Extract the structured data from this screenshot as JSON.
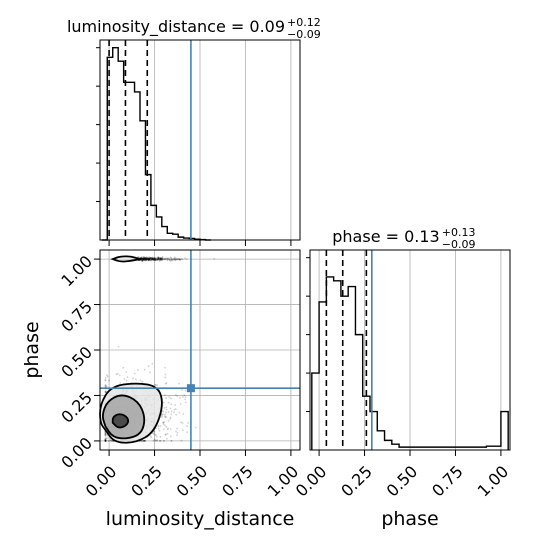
{
  "chart_data": {
    "type": "corner",
    "colors": {
      "truth": "#4682b4",
      "hist": "#000000",
      "grid": "#b0b0b0",
      "scatter": "#000000"
    },
    "truth": {
      "luminosity_distance": 0.45,
      "phase": 0.29
    },
    "axis_labels": {
      "x_left": "luminosity_distance",
      "x_right": "phase",
      "y_left": "phase"
    },
    "ticks": {
      "luminosity_distance": [
        0.0,
        0.25,
        0.5,
        0.75,
        1.0
      ],
      "phase": [
        0.0,
        0.25,
        0.5,
        0.75,
        1.0
      ]
    },
    "tick_labels": {
      "luminosity_distance": [
        "0.00",
        "0.25",
        "0.50",
        "0.75",
        "1.00"
      ],
      "phase": [
        "0.00",
        "0.25",
        "0.50",
        "0.75",
        "1.00"
      ]
    },
    "xlim": {
      "luminosity_distance": [
        -0.05,
        1.05
      ],
      "phase": [
        -0.05,
        1.05
      ]
    },
    "ylim": {
      "phase": [
        -0.05,
        1.05
      ]
    },
    "histograms": [
      {
        "param": "luminosity_distance",
        "title_main": "luminosity_distance = 0.09",
        "title_sup": "+0.12",
        "title_sub": "−0.09",
        "quantiles": [
          0.0,
          0.09,
          0.21
        ],
        "bin_edges": [
          -0.04,
          -0.01,
          0.02,
          0.05,
          0.08,
          0.11,
          0.14,
          0.17,
          0.2,
          0.23,
          0.26,
          0.29,
          0.32,
          0.35,
          0.38,
          0.41,
          0.44,
          0.47,
          0.5,
          0.53,
          0.56
        ],
        "counts": [
          0.0,
          0.95,
          1.0,
          0.93,
          0.82,
          0.82,
          0.77,
          0.62,
          0.34,
          0.18,
          0.12,
          0.07,
          0.035,
          0.03,
          0.015,
          0.01,
          0.008,
          0.004,
          0.002,
          0.0
        ]
      },
      {
        "param": "phase",
        "title_main": "phase = 0.13",
        "title_sup": "+0.13",
        "title_sub": "−0.09",
        "quantiles": [
          0.04,
          0.13,
          0.26
        ],
        "bin_edges": [
          -0.04,
          0.0,
          0.04,
          0.08,
          0.12,
          0.16,
          0.2,
          0.24,
          0.28,
          0.32,
          0.36,
          0.4,
          0.44,
          0.48,
          0.52,
          0.56,
          0.6,
          0.64,
          0.68,
          0.72,
          0.76,
          0.8,
          0.84,
          0.88,
          0.92,
          0.96,
          1.0,
          1.04
        ],
        "counts": [
          0.4,
          0.77,
          0.9,
          0.88,
          0.8,
          0.85,
          0.6,
          0.28,
          0.2,
          0.1,
          0.05,
          0.03,
          0.015,
          0.015,
          0.015,
          0.015,
          0.015,
          0.015,
          0.015,
          0.015,
          0.015,
          0.015,
          0.015,
          0.015,
          0.02,
          0.02,
          0.2
        ]
      }
    ],
    "density_2d": {
      "x_param": "luminosity_distance",
      "y_param": "phase",
      "blobs": [
        {
          "cx": 0.07,
          "cy": 0.11,
          "sx": 0.055,
          "sy": 0.05,
          "n": 800
        },
        {
          "cx": 0.12,
          "cy": 0.14,
          "sx": 0.12,
          "sy": 0.1,
          "n": 900
        },
        {
          "cx": 0.15,
          "cy": 1.0,
          "sx": 0.1,
          "sy": 0.004,
          "n": 400
        }
      ],
      "contours": [
        {
          "level": "inner",
          "points": [
            [
              0.02,
              0.1
            ],
            [
              0.05,
              0.07
            ],
            [
              0.09,
              0.08
            ],
            [
              0.11,
              0.11
            ],
            [
              0.09,
              0.14
            ],
            [
              0.05,
              0.15
            ],
            [
              0.02,
              0.13
            ]
          ]
        },
        {
          "level": "mid",
          "points": [
            [
              -0.02,
              0.08
            ],
            [
              0.02,
              0.02
            ],
            [
              0.1,
              0.01
            ],
            [
              0.18,
              0.04
            ],
            [
              0.2,
              0.13
            ],
            [
              0.16,
              0.22
            ],
            [
              0.07,
              0.26
            ],
            [
              -0.01,
              0.22
            ],
            [
              -0.04,
              0.14
            ]
          ]
        },
        {
          "level": "outer",
          "points": [
            [
              -0.02,
              0.06
            ],
            [
              0.03,
              -0.01
            ],
            [
              0.15,
              -0.01
            ],
            [
              0.25,
              0.05
            ],
            [
              0.3,
              0.2
            ],
            [
              0.27,
              0.3
            ],
            [
              0.15,
              0.32
            ],
            [
              0.01,
              0.3
            ],
            [
              -0.05,
              0.2
            ],
            [
              -0.05,
              0.1
            ]
          ]
        },
        {
          "level": "top",
          "points": [
            [
              0.02,
              1.0
            ],
            [
              0.06,
              0.985
            ],
            [
              0.12,
              0.99
            ],
            [
              0.17,
              1.0
            ],
            [
              0.12,
              1.015
            ],
            [
              0.06,
              1.015
            ]
          ]
        }
      ]
    }
  }
}
